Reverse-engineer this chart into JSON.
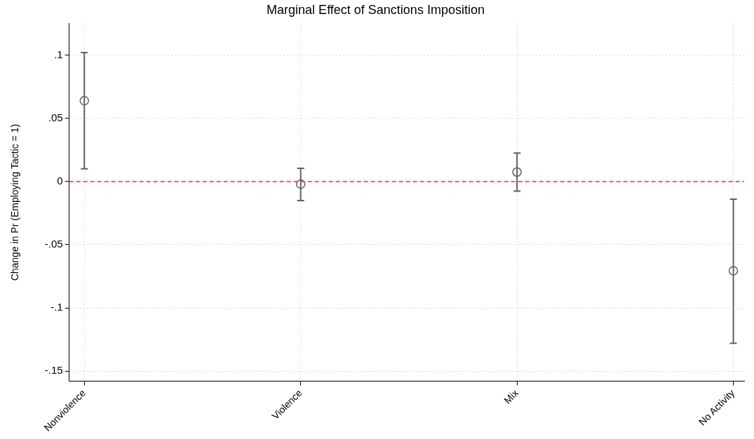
{
  "chart_data": {
    "type": "scatter",
    "title": "Marginal Effect of Sanctions Imposition",
    "ylabel": "Change in Pr (Employing Tactic = 1)",
    "categories": [
      "Nonviolence",
      "Violence",
      "Mix",
      "No Activity"
    ],
    "series": [
      {
        "color": "#606060",
        "values": [
          0.064,
          -0.002,
          0.0075,
          -0.0705
        ],
        "errors": [
          [
            0.01,
            0.102
          ],
          [
            -0.015,
            0.0105
          ],
          [
            -0.0075,
            0.0225
          ],
          [
            -0.128,
            -0.014
          ]
        ]
      }
    ],
    "ylim": [
      -0.158,
      0.125
    ],
    "yticks": [
      {
        "value": -0.15,
        "label": "-.15"
      },
      {
        "value": -0.1,
        "label": "-.1"
      },
      {
        "value": -0.05,
        "label": "-.05"
      },
      0,
      {
        "value": 0.05,
        "label": ".05"
      },
      {
        "value": 0.1,
        "label": ".1"
      }
    ],
    "ref_lines": [
      {
        "axis": "y",
        "value": 0,
        "color": "#ff3030",
        "line_style": "dashed"
      }
    ],
    "grid": true,
    "legend": false,
    "marker": "circle"
  }
}
